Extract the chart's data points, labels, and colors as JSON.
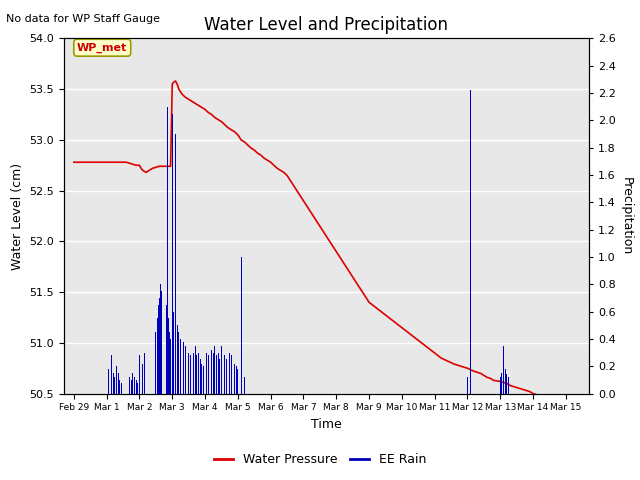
{
  "title": "Water Level and Precipitation",
  "subtitle": "No data for WP Staff Gauge",
  "xlabel": "Time",
  "ylabel_left": "Water Level (cm)",
  "ylabel_right": "Precipitation",
  "annotation": "WP_met",
  "plot_bg_color": "#e8e8e8",
  "ylim_left": [
    50.5,
    54.0
  ],
  "ylim_right": [
    0.0,
    2.6
  ],
  "yticks_left": [
    50.5,
    51.0,
    51.5,
    52.0,
    52.5,
    53.0,
    53.5,
    54.0
  ],
  "yticks_right": [
    0.0,
    0.2,
    0.4,
    0.6,
    0.8,
    1.0,
    1.2,
    1.4,
    1.6,
    1.8,
    2.0,
    2.2,
    2.4,
    2.6
  ],
  "xtick_positions": [
    -1,
    0,
    1,
    2,
    3,
    4,
    5,
    6,
    7,
    8,
    9,
    10,
    11,
    12,
    13,
    14
  ],
  "xtick_labels": [
    "Feb 29",
    "Mar 1",
    "Mar 2",
    "Mar 3",
    "Mar 4",
    "Mar 5",
    "Mar 6",
    "Mar 7",
    "Mar 8",
    "Mar 9",
    "Mar 10",
    "Mar 11",
    "Mar 12",
    "Mar 13",
    "Mar 14",
    "Mar 15"
  ],
  "water_pressure_color": "#dd0000",
  "rain_color": "#0000bb",
  "legend_items": [
    "Water Pressure",
    "EE Rain"
  ],
  "water_level_x": [
    -1.0,
    -0.5,
    0.0,
    0.3,
    0.6,
    0.9,
    1.0,
    1.05,
    1.1,
    1.2,
    1.4,
    1.6,
    1.75,
    1.85,
    1.95,
    2.0,
    2.05,
    2.1,
    2.15,
    2.2,
    2.3,
    2.4,
    2.5,
    2.6,
    2.7,
    2.8,
    2.9,
    3.0,
    3.1,
    3.2,
    3.3,
    3.4,
    3.5,
    3.6,
    3.7,
    3.8,
    3.9,
    4.0,
    4.1,
    4.2,
    4.3,
    4.4,
    4.5,
    4.6,
    4.7,
    4.8,
    4.9,
    5.0,
    5.1,
    5.2,
    5.3,
    5.4,
    5.5,
    5.6,
    5.7,
    5.8,
    5.9,
    6.0,
    6.1,
    6.2,
    6.3,
    6.4,
    6.5,
    6.6,
    6.7,
    6.8,
    6.9,
    7.0,
    7.1,
    7.2,
    7.3,
    7.4,
    7.5,
    7.6,
    7.7,
    7.8,
    7.9,
    8.0,
    8.2,
    8.4,
    8.6,
    8.8,
    9.0,
    9.2,
    9.4,
    9.6,
    9.8,
    10.0,
    10.2,
    10.4,
    10.6,
    10.8,
    11.0,
    11.2,
    11.4,
    11.5,
    11.6,
    11.7,
    11.8,
    12.0,
    12.2,
    12.3,
    12.5,
    12.7,
    12.9,
    13.0,
    13.2,
    13.4,
    13.6,
    13.8,
    14.0
  ],
  "water_level_y": [
    52.78,
    52.78,
    52.78,
    52.78,
    52.78,
    52.75,
    52.75,
    52.72,
    52.7,
    52.68,
    52.72,
    52.74,
    52.74,
    52.74,
    52.74,
    53.55,
    53.57,
    53.58,
    53.55,
    53.5,
    53.45,
    53.42,
    53.4,
    53.38,
    53.36,
    53.34,
    53.32,
    53.3,
    53.27,
    53.25,
    53.22,
    53.2,
    53.18,
    53.15,
    53.12,
    53.1,
    53.08,
    53.05,
    53.0,
    52.98,
    52.95,
    52.92,
    52.9,
    52.87,
    52.85,
    52.82,
    52.8,
    52.78,
    52.75,
    52.72,
    52.7,
    52.68,
    52.65,
    52.6,
    52.55,
    52.5,
    52.45,
    52.4,
    52.35,
    52.3,
    52.25,
    52.2,
    52.15,
    52.1,
    52.05,
    52.0,
    51.95,
    51.9,
    51.85,
    51.8,
    51.75,
    51.7,
    51.65,
    51.6,
    51.55,
    51.5,
    51.45,
    51.4,
    51.35,
    51.3,
    51.25,
    51.2,
    51.15,
    51.1,
    51.05,
    51.0,
    50.95,
    50.9,
    50.85,
    50.82,
    50.79,
    50.77,
    50.75,
    50.72,
    50.7,
    50.68,
    50.66,
    50.65,
    50.63,
    50.62,
    50.6,
    50.58,
    50.56,
    50.54,
    50.52,
    50.5,
    50.48,
    50.46,
    50.44,
    50.42,
    50.4
  ],
  "rain_x": [
    0.05,
    0.1,
    0.15,
    0.2,
    0.25,
    0.3,
    0.35,
    0.4,
    0.45,
    0.7,
    0.75,
    0.8,
    0.85,
    0.9,
    0.95,
    1.0,
    1.05,
    1.1,
    1.15,
    1.2,
    1.5,
    1.55,
    1.58,
    1.62,
    1.65,
    1.68,
    1.72,
    1.75,
    1.78,
    1.82,
    1.85,
    1.88,
    1.92,
    1.95,
    2.0,
    2.05,
    2.1,
    2.15,
    2.2,
    2.25,
    2.3,
    2.35,
    2.4,
    2.45,
    2.5,
    2.55,
    2.6,
    2.65,
    2.7,
    2.75,
    2.8,
    2.85,
    2.9,
    2.95,
    3.0,
    3.05,
    3.1,
    3.15,
    3.2,
    3.25,
    3.3,
    3.35,
    3.4,
    3.45,
    3.5,
    3.55,
    3.6,
    3.65,
    3.7,
    3.75,
    3.8,
    3.85,
    3.9,
    3.95,
    4.0,
    4.1,
    4.2,
    11.0,
    11.1,
    12.0,
    12.05,
    12.1,
    12.15,
    12.2,
    12.25,
    12.3
  ],
  "rain_height": [
    0.18,
    0.22,
    0.28,
    0.15,
    0.12,
    0.2,
    0.15,
    0.1,
    0.08,
    0.12,
    0.1,
    0.15,
    0.12,
    0.1,
    0.08,
    0.28,
    0.25,
    0.22,
    0.3,
    0.35,
    0.45,
    0.55,
    0.65,
    0.7,
    0.8,
    0.75,
    0.85,
    2.22,
    0.7,
    0.65,
    2.1,
    0.55,
    0.45,
    0.4,
    2.05,
    0.6,
    1.9,
    0.5,
    0.45,
    0.4,
    0.42,
    0.38,
    0.35,
    0.32,
    0.3,
    0.28,
    0.32,
    0.3,
    0.35,
    0.28,
    0.3,
    0.25,
    0.22,
    0.2,
    0.35,
    0.3,
    0.28,
    0.25,
    0.32,
    0.3,
    0.35,
    0.28,
    0.3,
    0.25,
    0.35,
    0.3,
    0.28,
    0.25,
    0.35,
    0.3,
    0.28,
    0.25,
    0.22,
    0.2,
    0.18,
    1.0,
    0.12,
    0.12,
    2.22,
    0.12,
    0.15,
    0.35,
    0.18,
    0.14,
    0.12,
    0.35
  ],
  "xlim": [
    -1.3,
    14.7
  ]
}
